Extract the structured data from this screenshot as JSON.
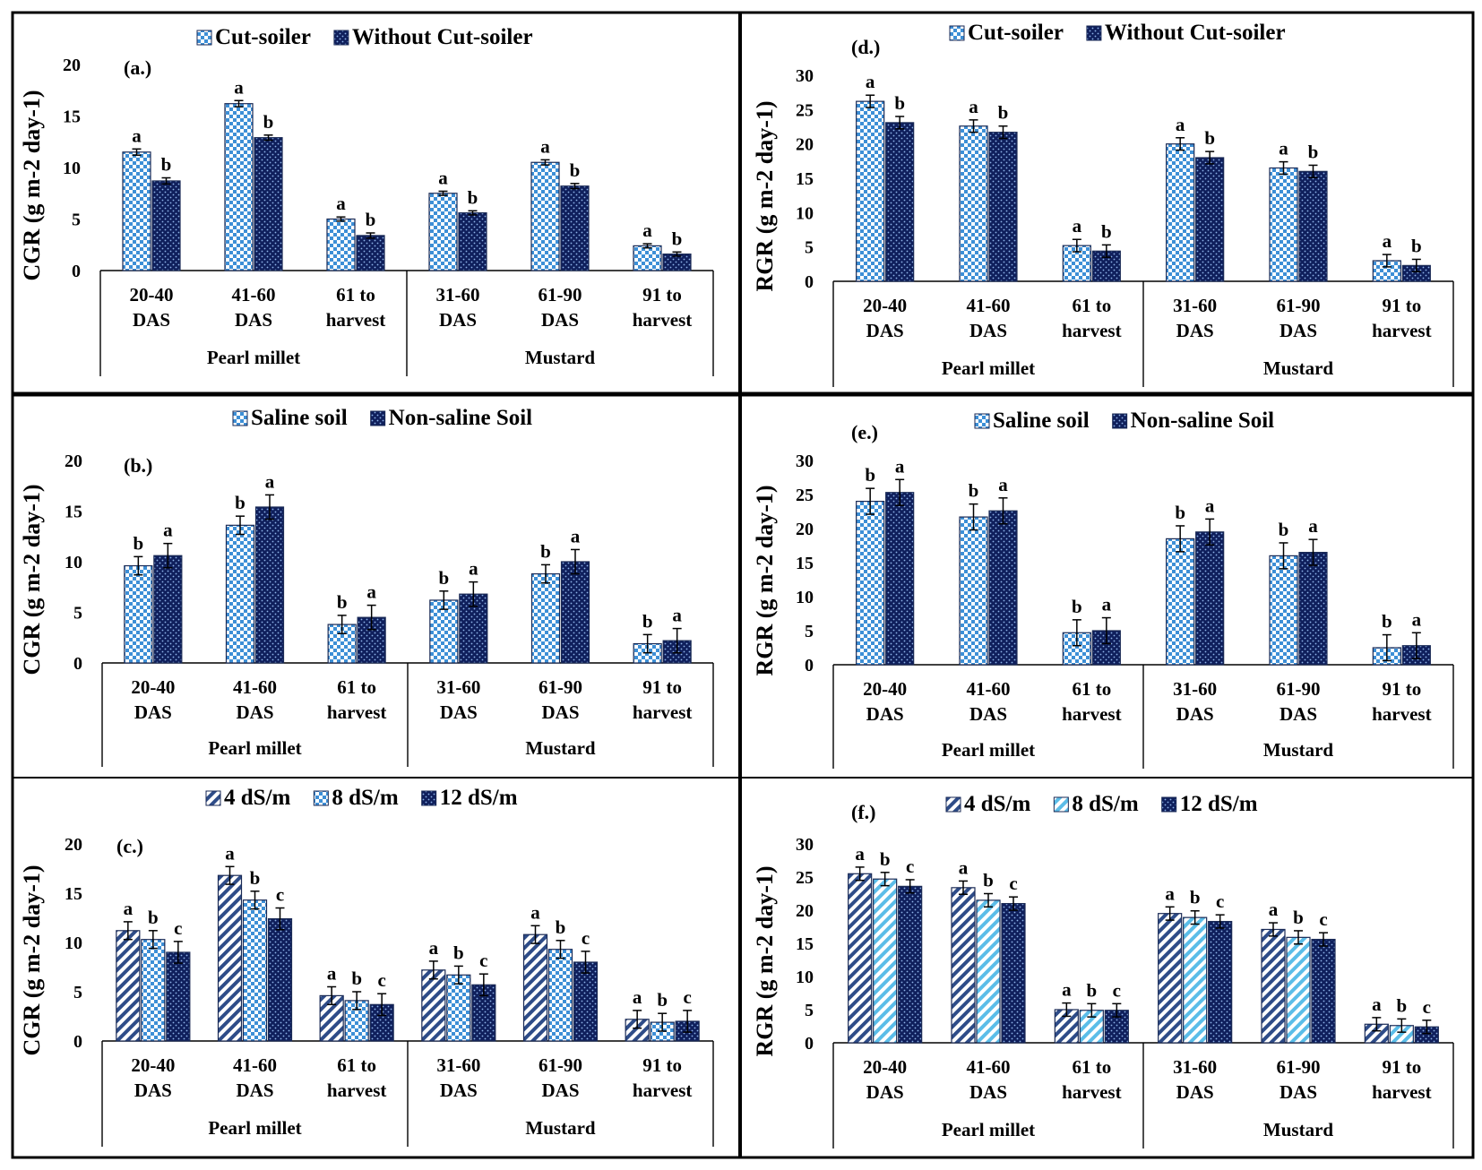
{
  "colors": {
    "frame": "#000000",
    "checker_light": "#3d8fd6",
    "checker_dark": "#0f1f5c",
    "hatch_stripe": "#2e4c88",
    "light_stripe": "#5bbde8"
  },
  "chart_data": [
    {
      "id": "a",
      "type": "bar",
      "panel_label": "(a.)",
      "ylabel": "CGR (g m-2 day-1)",
      "ylim": [
        0,
        20
      ],
      "yticks": [
        0,
        5,
        10,
        15,
        20
      ],
      "categories": [
        "20-40 DAS",
        "41-60 DAS",
        "61 to harvest",
        "31-60 DAS",
        "61-90 DAS",
        "91 to harvest"
      ],
      "category_lines": [
        [
          "20-40",
          "DAS"
        ],
        [
          "41-60",
          "DAS"
        ],
        [
          "61 to",
          "harvest"
        ],
        [
          "31-60",
          "DAS"
        ],
        [
          "61-90",
          "DAS"
        ],
        [
          "91 to",
          "harvest"
        ]
      ],
      "groups": [
        {
          "label": "Pearl millet",
          "span": [
            0,
            2
          ]
        },
        {
          "label": "Mustard",
          "span": [
            3,
            5
          ]
        }
      ],
      "series": [
        {
          "name": "Cut-soiler",
          "pattern": "checker-light",
          "values": [
            11.5,
            16.2,
            5.0,
            7.5,
            10.5,
            2.4
          ],
          "errors": [
            0.3,
            0.3,
            0.2,
            0.2,
            0.25,
            0.2
          ],
          "letters": [
            "a",
            "a",
            "a",
            "a",
            "a",
            "a"
          ]
        },
        {
          "name": "Without Cut-soiler",
          "pattern": "checker-dark",
          "values": [
            8.7,
            12.9,
            3.4,
            5.6,
            8.2,
            1.6
          ],
          "errors": [
            0.3,
            0.25,
            0.25,
            0.2,
            0.25,
            0.2
          ],
          "letters": [
            "b",
            "b",
            "b",
            "b",
            "b",
            "b"
          ]
        }
      ]
    },
    {
      "id": "d",
      "type": "bar",
      "panel_label": "(d.)",
      "ylabel": "RGR (g m-2 day-1)",
      "ylim": [
        0,
        30
      ],
      "yticks": [
        0,
        5,
        10,
        15,
        20,
        25,
        30
      ],
      "categories": [
        "20-40 DAS",
        "41-60 DAS",
        "61 to harvest",
        "31-60 DAS",
        "61-90 DAS",
        "91 to harvest"
      ],
      "category_lines": [
        [
          "20-40",
          "DAS"
        ],
        [
          "41-60",
          "DAS"
        ],
        [
          "61 to",
          "harvest"
        ],
        [
          "31-60",
          "DAS"
        ],
        [
          "61-90",
          "DAS"
        ],
        [
          "91 to",
          "harvest"
        ]
      ],
      "groups": [
        {
          "label": "Pearl millet",
          "span": [
            0,
            2
          ]
        },
        {
          "label": "Mustard",
          "span": [
            3,
            5
          ]
        }
      ],
      "series": [
        {
          "name": "Cut-soiler",
          "pattern": "checker-light",
          "values": [
            26.2,
            22.6,
            5.2,
            20.0,
            16.5,
            3.0
          ],
          "errors": [
            0.9,
            0.9,
            0.9,
            0.9,
            0.9,
            0.9
          ],
          "letters": [
            "a",
            "a",
            "a",
            "a",
            "a",
            "a"
          ]
        },
        {
          "name": "Without Cut-soiler",
          "pattern": "checker-dark",
          "values": [
            23.1,
            21.7,
            4.4,
            18.0,
            16.0,
            2.3
          ],
          "errors": [
            0.9,
            0.9,
            0.9,
            0.9,
            0.9,
            0.9
          ],
          "letters": [
            "b",
            "b",
            "b",
            "b",
            "b",
            "b"
          ]
        }
      ]
    },
    {
      "id": "b",
      "type": "bar",
      "panel_label": "(b.)",
      "ylabel": "CGR (g m-2 day-1)",
      "ylim": [
        0,
        20
      ],
      "yticks": [
        0,
        5,
        10,
        15,
        20
      ],
      "categories": [
        "20-40 DAS",
        "41-60 DAS",
        "61 to harvest",
        "31-60 DAS",
        "61-90 DAS",
        "91 to harvest"
      ],
      "category_lines": [
        [
          "20-40",
          "DAS"
        ],
        [
          "41-60",
          "DAS"
        ],
        [
          "61 to",
          "harvest"
        ],
        [
          "31-60",
          "DAS"
        ],
        [
          "61-90",
          "DAS"
        ],
        [
          "91 to",
          "harvest"
        ]
      ],
      "groups": [
        {
          "label": "Pearl millet",
          "span": [
            0,
            2
          ]
        },
        {
          "label": "Mustard",
          "span": [
            3,
            5
          ]
        }
      ],
      "series": [
        {
          "name": "Saline soil",
          "pattern": "checker-light",
          "values": [
            9.6,
            13.6,
            3.8,
            6.2,
            8.8,
            1.9
          ],
          "errors": [
            0.9,
            0.9,
            0.9,
            0.9,
            0.9,
            0.9
          ],
          "letters": [
            "b",
            "b",
            "b",
            "b",
            "b",
            "b"
          ]
        },
        {
          "name": "Non-saline Soil",
          "pattern": "checker-dark",
          "values": [
            10.6,
            15.4,
            4.5,
            6.8,
            10.0,
            2.2
          ],
          "errors": [
            1.2,
            1.2,
            1.2,
            1.2,
            1.2,
            1.2
          ],
          "letters": [
            "a",
            "a",
            "a",
            "a",
            "a",
            "a"
          ]
        }
      ]
    },
    {
      "id": "e",
      "type": "bar",
      "panel_label": "(e.)",
      "ylabel": "RGR (g m-2 day-1)",
      "ylim": [
        0,
        30
      ],
      "yticks": [
        0,
        5,
        10,
        15,
        20,
        25,
        30
      ],
      "categories": [
        "20-40 DAS",
        "41-60 DAS",
        "61 to harvest",
        "31-60 DAS",
        "61-90 DAS",
        "91 to harvest"
      ],
      "category_lines": [
        [
          "20-40",
          "DAS"
        ],
        [
          "41-60",
          "DAS"
        ],
        [
          "61 to",
          "harvest"
        ],
        [
          "31-60",
          "DAS"
        ],
        [
          "61-90",
          "DAS"
        ],
        [
          "91 to",
          "harvest"
        ]
      ],
      "groups": [
        {
          "label": "Pearl millet",
          "span": [
            0,
            2
          ]
        },
        {
          "label": "Mustard",
          "span": [
            3,
            5
          ]
        }
      ],
      "series": [
        {
          "name": "Saline soil",
          "pattern": "checker-light",
          "values": [
            24.0,
            21.7,
            4.7,
            18.5,
            16.0,
            2.5
          ],
          "errors": [
            1.9,
            1.9,
            1.9,
            1.9,
            1.9,
            1.9
          ],
          "letters": [
            "b",
            "b",
            "b",
            "b",
            "b",
            "b"
          ]
        },
        {
          "name": "Non-saline Soil",
          "pattern": "checker-dark",
          "values": [
            25.3,
            22.6,
            5.0,
            19.5,
            16.5,
            2.8
          ],
          "errors": [
            1.9,
            1.9,
            1.9,
            1.9,
            1.9,
            1.9
          ],
          "letters": [
            "a",
            "a",
            "a",
            "a",
            "a",
            "a"
          ]
        }
      ]
    },
    {
      "id": "c",
      "type": "bar",
      "panel_label": "(c.)",
      "ylabel": "CGR (g m-2 day-1)",
      "ylim": [
        0,
        20
      ],
      "yticks": [
        0,
        5,
        10,
        15,
        20
      ],
      "categories": [
        "20-40 DAS",
        "41-60 DAS",
        "61 to harvest",
        "31-60 DAS",
        "61-90 DAS",
        "91 to harvest"
      ],
      "category_lines": [
        [
          "20-40",
          "DAS"
        ],
        [
          "41-60",
          "DAS"
        ],
        [
          "61 to",
          "harvest"
        ],
        [
          "31-60",
          "DAS"
        ],
        [
          "61-90",
          "DAS"
        ],
        [
          "91 to",
          "harvest"
        ]
      ],
      "groups": [
        {
          "label": "Pearl millet",
          "span": [
            0,
            2
          ]
        },
        {
          "label": "Mustard",
          "span": [
            3,
            5
          ]
        }
      ],
      "series": [
        {
          "name": "4 dS/m",
          "pattern": "hatch",
          "values": [
            11.2,
            16.8,
            4.6,
            7.2,
            10.8,
            2.2
          ],
          "errors": [
            0.9,
            0.9,
            0.9,
            0.9,
            0.9,
            0.9
          ],
          "letters": [
            "a",
            "a",
            "a",
            "a",
            "a",
            "a"
          ]
        },
        {
          "name": "8 dS/m",
          "pattern": "checker-light",
          "values": [
            10.3,
            14.3,
            4.1,
            6.7,
            9.3,
            1.9
          ],
          "errors": [
            0.9,
            0.9,
            0.9,
            0.9,
            0.9,
            0.9
          ],
          "letters": [
            "b",
            "b",
            "b",
            "b",
            "b",
            "b"
          ]
        },
        {
          "name": "12 dS/m",
          "pattern": "checker-dark",
          "values": [
            9.0,
            12.4,
            3.7,
            5.7,
            8.0,
            2.0
          ],
          "errors": [
            1.1,
            1.1,
            1.1,
            1.1,
            1.1,
            1.1
          ],
          "letters": [
            "c",
            "c",
            "c",
            "c",
            "c",
            "c"
          ]
        }
      ]
    },
    {
      "id": "f",
      "type": "bar",
      "panel_label": "(f.)",
      "ylabel": "RGR (g m-2 day-1)",
      "ylim": [
        0,
        30
      ],
      "yticks": [
        0,
        5,
        10,
        15,
        20,
        25,
        30
      ],
      "categories": [
        "20-40 DAS",
        "41-60 DAS",
        "61 to harvest",
        "31-60 DAS",
        "61-90 DAS",
        "91 to harvest"
      ],
      "category_lines": [
        [
          "20-40",
          "DAS"
        ],
        [
          "41-60",
          "DAS"
        ],
        [
          "61 to",
          "harvest"
        ],
        [
          "31-60",
          "DAS"
        ],
        [
          "61-90",
          "DAS"
        ],
        [
          "91 to",
          "harvest"
        ]
      ],
      "groups": [
        {
          "label": "Pearl millet",
          "span": [
            0,
            2
          ]
        },
        {
          "label": "Mustard",
          "span": [
            3,
            5
          ]
        }
      ],
      "series": [
        {
          "name": "4 dS/m",
          "pattern": "hatch",
          "values": [
            25.5,
            23.4,
            5.0,
            19.5,
            17.1,
            2.8
          ],
          "errors": [
            1.0,
            1.0,
            1.0,
            1.0,
            1.0,
            1.0
          ],
          "letters": [
            "a",
            "a",
            "a",
            "a",
            "a",
            "a"
          ]
        },
        {
          "name": "8 dS/m",
          "pattern": "light-stripe",
          "values": [
            24.7,
            21.5,
            4.9,
            18.9,
            15.9,
            2.6
          ],
          "errors": [
            1.0,
            1.0,
            1.0,
            1.0,
            1.0,
            1.0
          ],
          "letters": [
            "b",
            "b",
            "b",
            "b",
            "b",
            "b"
          ]
        },
        {
          "name": "12 dS/m",
          "pattern": "checker-dark",
          "values": [
            23.6,
            21.0,
            4.9,
            18.3,
            15.6,
            2.4
          ],
          "errors": [
            1.0,
            1.0,
            1.0,
            1.0,
            1.0,
            1.0
          ],
          "letters": [
            "c",
            "c",
            "c",
            "c",
            "c",
            "c"
          ]
        }
      ]
    }
  ]
}
